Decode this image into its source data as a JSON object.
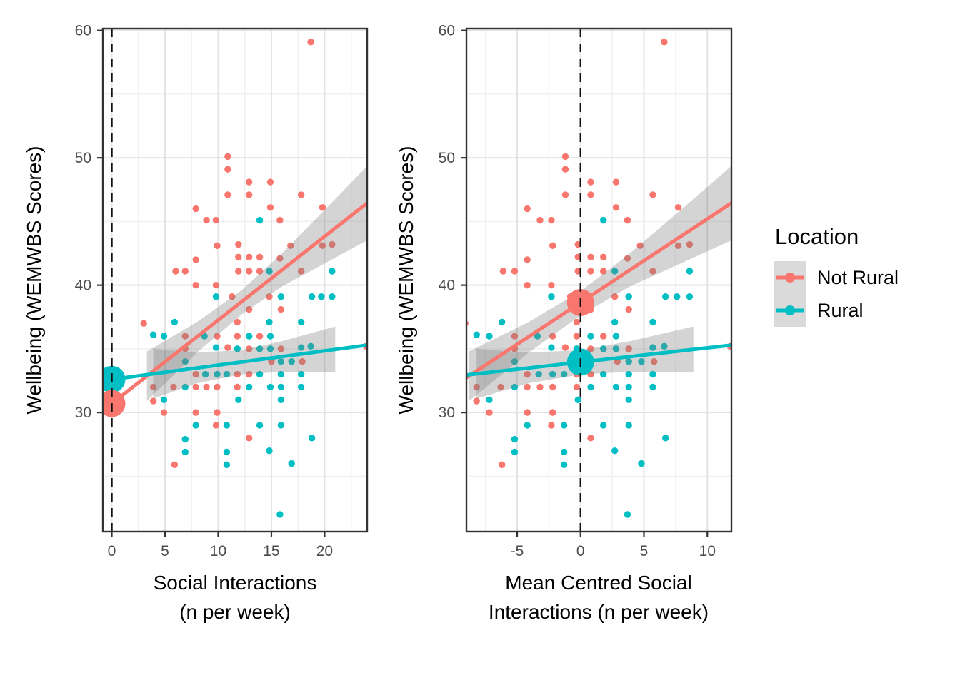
{
  "chart_data": {
    "type": "scatter",
    "title": "",
    "ylabel": "Wellbeing (WEMWBS Scores)",
    "ylim": [
      20.65,
      60.15
    ],
    "y_ticks": [
      30,
      40,
      50,
      60
    ],
    "y_minor": [
      25,
      35,
      45,
      55
    ],
    "grid": true,
    "mean_offset": 12.1,
    "colors": {
      "not_rural": "#F8766D",
      "rural": "#00BFC4",
      "ribbon": "rgba(125,125,125,0.33)",
      "vline": "#111111",
      "panel_border": "#333333",
      "tick_label": "#4D4D4D",
      "axis_title": "#000000",
      "grid_major": "#E3E3E3",
      "grid_minor": "#F0F0F0"
    },
    "legend": {
      "title": "Location",
      "position": "right",
      "entries": [
        {
          "label": "Not Rural",
          "color": "#F8766D"
        },
        {
          "label": "Rural",
          "color": "#00BFC4"
        }
      ]
    },
    "panels": [
      {
        "xlabel_lines": [
          "Social Interactions",
          "(n per week)"
        ],
        "x_ticks": [
          0,
          5,
          10,
          15,
          20
        ],
        "x_minor": [
          2.5,
          7.5,
          12.5,
          17.5,
          22.5
        ],
        "xlim": [
          -0.84,
          24.0
        ],
        "centered": false,
        "vline_x": 0
      },
      {
        "xlabel_lines": [
          "Mean Centred Social",
          "Interactions (n per week)"
        ],
        "x_ticks": [
          -5,
          0,
          5,
          10
        ],
        "x_minor": [
          -7.5,
          -2.5,
          2.5,
          7.5
        ],
        "xlim": [
          -9.0,
          11.9
        ],
        "centered": true,
        "vline_x": 0
      }
    ],
    "series": [
      {
        "name": "Not Rural",
        "key": "not_rural",
        "points": [
          [
            18.7,
            59.1
          ],
          [
            10.9,
            50.1
          ],
          [
            10.9,
            49.1
          ],
          [
            12.9,
            48.1
          ],
          [
            14.9,
            48.1
          ],
          [
            10.9,
            47.1
          ],
          [
            12.9,
            47.1
          ],
          [
            17.8,
            47.1
          ],
          [
            7.9,
            46.0
          ],
          [
            14.9,
            46.1
          ],
          [
            19.8,
            46.1
          ],
          [
            8.9,
            45.1
          ],
          [
            9.8,
            45.1
          ],
          [
            15.8,
            45.1
          ],
          [
            9.9,
            43.1
          ],
          [
            11.9,
            43.2
          ],
          [
            16.8,
            43.1
          ],
          [
            19.8,
            43.1
          ],
          [
            20.7,
            43.2
          ],
          [
            7.9,
            42.0
          ],
          [
            11.9,
            42.2
          ],
          [
            12.9,
            42.2
          ],
          [
            13.9,
            42.2
          ],
          [
            15.8,
            42.1
          ],
          [
            6.0,
            41.1
          ],
          [
            6.9,
            41.1
          ],
          [
            11.9,
            41.1
          ],
          [
            12.9,
            41.1
          ],
          [
            13.9,
            41.1
          ],
          [
            17.8,
            41.1
          ],
          [
            7.9,
            40.0
          ],
          [
            9.8,
            40.0
          ],
          [
            11.3,
            39.1
          ],
          [
            14.8,
            39.1
          ],
          [
            12.9,
            38.1
          ],
          [
            15.9,
            38.1
          ],
          [
            3.0,
            37.0
          ],
          [
            11.8,
            37.1
          ],
          [
            6.9,
            36.0
          ],
          [
            9.9,
            36.0
          ],
          [
            11.8,
            36.0
          ],
          [
            13.9,
            36.0
          ],
          [
            6.9,
            35.0
          ],
          [
            10.9,
            35.1
          ],
          [
            12.9,
            35.0
          ],
          [
            15.9,
            35.0
          ],
          [
            23.9,
            35.2
          ],
          [
            15.0,
            34.0
          ],
          [
            17.9,
            34.0
          ],
          [
            7.9,
            33.0
          ],
          [
            11.8,
            33.0
          ],
          [
            12.9,
            33.0
          ],
          [
            3.9,
            32.0
          ],
          [
            5.8,
            32.0
          ],
          [
            7.9,
            32.0
          ],
          [
            8.9,
            32.0
          ],
          [
            9.9,
            32.0
          ],
          [
            11.8,
            32.0
          ],
          [
            3.9,
            30.9
          ],
          [
            4.9,
            30.0
          ],
          [
            7.9,
            30.0
          ],
          [
            9.9,
            30.0
          ],
          [
            9.8,
            29.0
          ],
          [
            12.9,
            28.0
          ],
          [
            5.9,
            25.9
          ]
        ]
      },
      {
        "name": "Rural",
        "key": "rural",
        "points": [
          [
            13.9,
            45.1
          ],
          [
            14.8,
            41.1
          ],
          [
            20.7,
            41.1
          ],
          [
            9.8,
            39.1
          ],
          [
            15.9,
            39.1
          ],
          [
            18.8,
            39.1
          ],
          [
            19.7,
            39.1
          ],
          [
            20.7,
            39.1
          ],
          [
            5.9,
            37.1
          ],
          [
            14.8,
            37.1
          ],
          [
            17.8,
            37.1
          ],
          [
            3.9,
            36.1
          ],
          [
            4.9,
            36.0
          ],
          [
            8.7,
            36.0
          ],
          [
            12.9,
            36.0
          ],
          [
            14.9,
            36.0
          ],
          [
            9.8,
            35.1
          ],
          [
            11.8,
            35.0
          ],
          [
            13.9,
            35.0
          ],
          [
            14.9,
            35.0
          ],
          [
            17.8,
            35.1
          ],
          [
            18.7,
            35.2
          ],
          [
            6.9,
            34.0
          ],
          [
            15.9,
            34.0
          ],
          [
            16.9,
            34.0
          ],
          [
            8.8,
            33.0
          ],
          [
            9.9,
            33.0
          ],
          [
            10.8,
            33.0
          ],
          [
            13.9,
            33.0
          ],
          [
            15.9,
            33.0
          ],
          [
            17.8,
            33.0
          ],
          [
            6.9,
            32.0
          ],
          [
            12.9,
            32.0
          ],
          [
            14.9,
            32.0
          ],
          [
            15.9,
            32.0
          ],
          [
            17.8,
            32.0
          ],
          [
            4.9,
            31.0
          ],
          [
            11.9,
            31.0
          ],
          [
            15.9,
            31.0
          ],
          [
            7.9,
            29.0
          ],
          [
            10.8,
            29.0
          ],
          [
            13.9,
            29.0
          ],
          [
            15.9,
            29.0
          ],
          [
            6.9,
            27.9
          ],
          [
            18.8,
            28.0
          ],
          [
            6.9,
            26.9
          ],
          [
            10.8,
            26.9
          ],
          [
            14.8,
            27.0
          ],
          [
            10.8,
            25.9
          ],
          [
            16.9,
            26.0
          ],
          [
            15.8,
            22.0
          ]
        ]
      }
    ],
    "fits": [
      {
        "key": "not_rural",
        "intercept": 30.7,
        "slope": 0.656,
        "big_dot_radius": 19,
        "ribbon": {
          "x": [
            3.3,
            8.0,
            12.2,
            16.0,
            20.0,
            24.4
          ],
          "lo": [
            30.9,
            34.7,
            37.7,
            39.9,
            41.7,
            43.7
          ],
          "hi": [
            34.8,
            37.1,
            39.6,
            42.5,
            45.9,
            49.7
          ]
        }
      },
      {
        "key": "rural",
        "intercept": 32.6,
        "slope": 0.112,
        "big_dot_radius": 19,
        "ribbon": {
          "x": [
            3.9,
            8.0,
            12.2,
            16.0,
            21.0
          ],
          "lo": [
            31.1,
            32.3,
            33.0,
            33.2,
            33.15
          ],
          "hi": [
            35.0,
            34.7,
            34.9,
            35.6,
            36.75
          ]
        }
      }
    ]
  }
}
